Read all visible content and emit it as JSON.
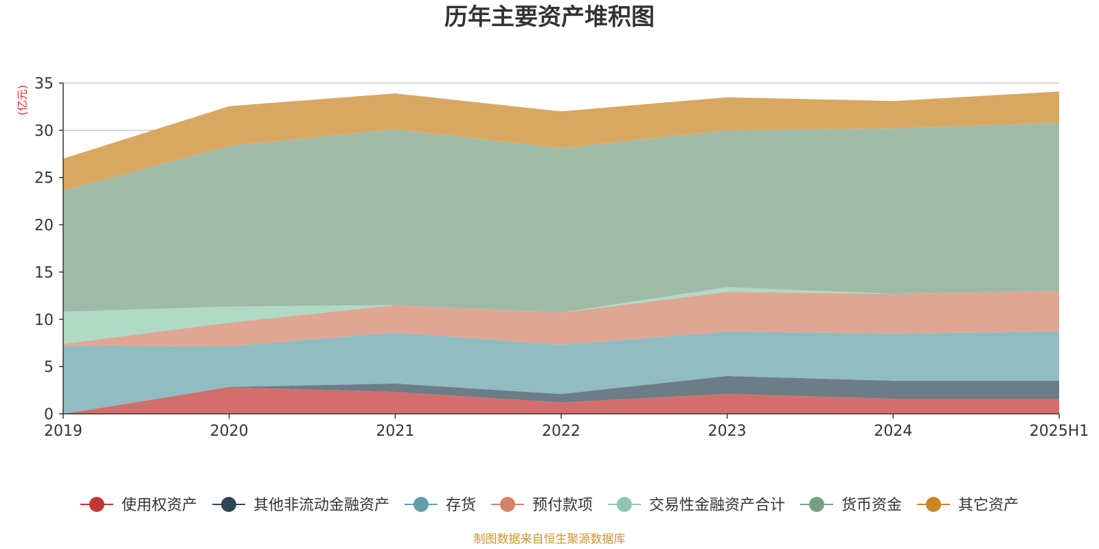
{
  "chart_data": {
    "type": "area",
    "stacked": true,
    "title": "历年主要资产堆积图",
    "unit_label": "(亿元)",
    "source": "制图数据来自恒生聚源数据库",
    "categories": [
      "2019",
      "2020",
      "2021",
      "2022",
      "2023",
      "2024",
      "2025H1"
    ],
    "ylim": [
      0,
      35
    ],
    "yticks": [
      0,
      5,
      10,
      15,
      20,
      25,
      30,
      35
    ],
    "grid": true,
    "legend_position": "bottom",
    "series": [
      {
        "name": "使用权资产",
        "values": [
          0,
          2.8,
          2.3,
          1.2,
          2.1,
          1.6,
          1.6
        ],
        "color": "#c23531",
        "fill": "#d46e6c"
      },
      {
        "name": "其他非流动金融资产",
        "values": [
          0,
          0.05,
          0.9,
          0.9,
          1.9,
          1.9,
          1.9
        ],
        "color": "#2f4554",
        "fill": "#6d7d87"
      },
      {
        "name": "存货",
        "values": [
          7.2,
          4.3,
          5.4,
          5.2,
          4.7,
          5.0,
          5.2
        ],
        "color": "#61a0a8",
        "fill": "#90bcc2"
      },
      {
        "name": "预付款项",
        "values": [
          0.2,
          2.5,
          2.9,
          3.4,
          4.2,
          4.2,
          4.3
        ],
        "color": "#d48265",
        "fill": "#e0a694"
      },
      {
        "name": "交易性金融资产合计",
        "values": [
          3.4,
          1.7,
          0,
          0,
          0.5,
          0,
          0
        ],
        "color": "#91c7ae",
        "fill": "#b0d9c6"
      },
      {
        "name": "货币资金",
        "values": [
          12.8,
          17.0,
          18.6,
          17.4,
          16.6,
          17.5,
          17.8
        ],
        "color": "#749f83",
        "fill": "#9fbba8"
      },
      {
        "name": "其它资产",
        "values": [
          3.4,
          4.2,
          3.8,
          3.9,
          3.5,
          2.9,
          3.3
        ],
        "color": "#ca8622",
        "fill": "#d8a862"
      }
    ]
  }
}
